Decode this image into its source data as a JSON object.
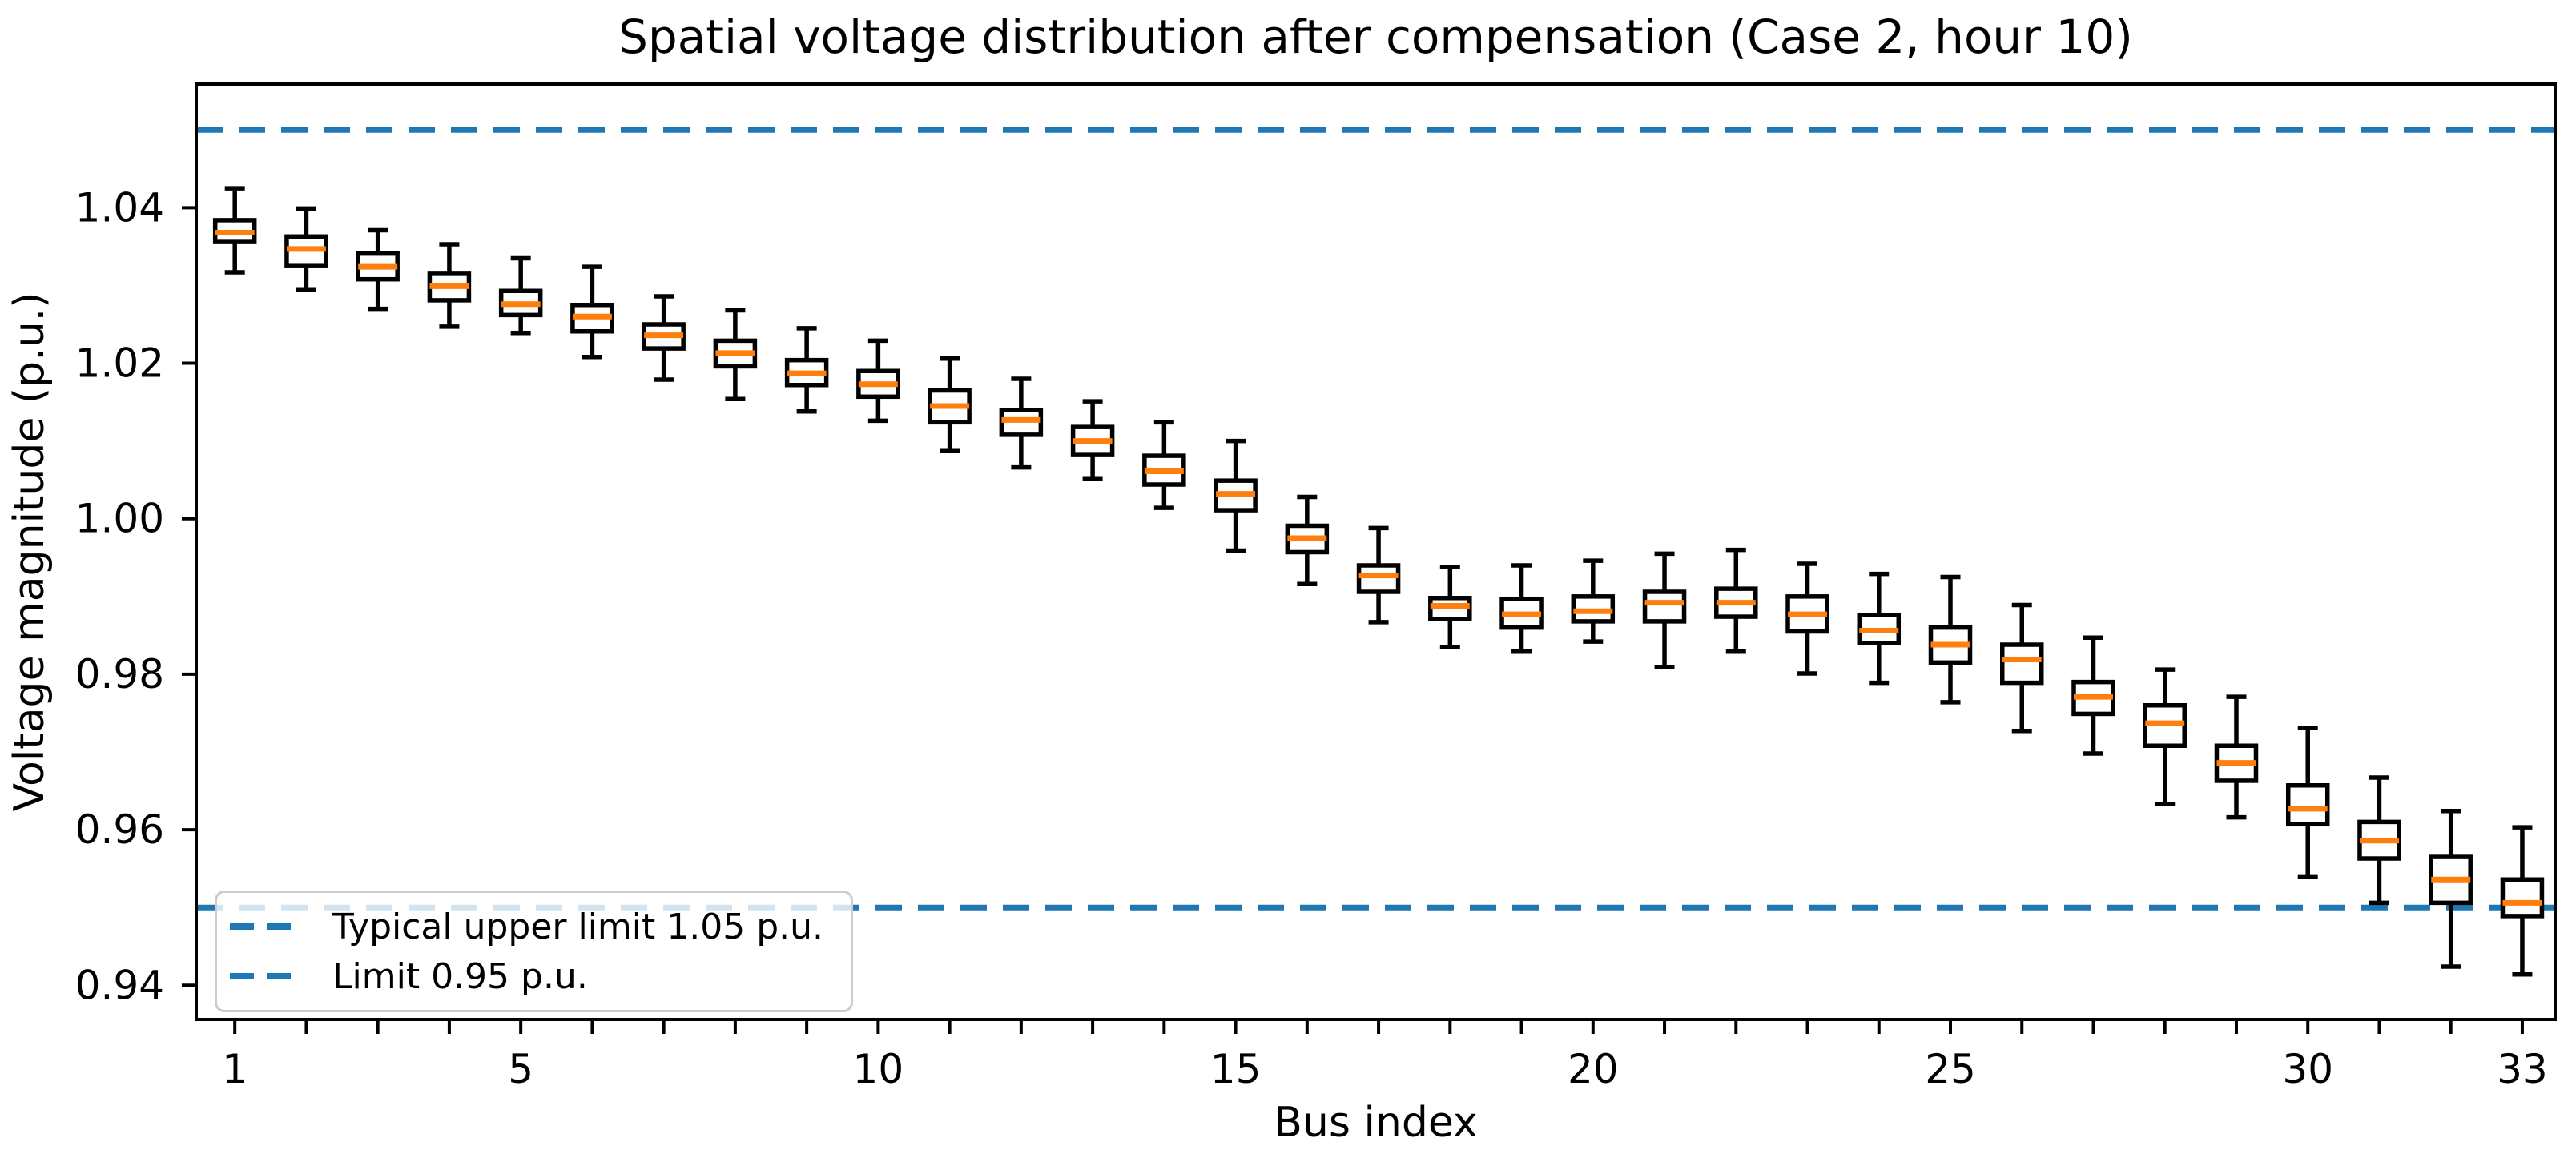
{
  "chart": {
    "title": "Spatial voltage distribution after compensation (Case 2, hour 10)",
    "xlabel": "Bus index",
    "ylabel": "Voltage magnitude (p.u.)"
  },
  "legend": {
    "items": [
      {
        "label": "Typical upper limit 1.05 p.u."
      },
      {
        "label": "Limit 0.95 p.u."
      }
    ]
  },
  "chart_data": {
    "type": "box",
    "title": "Spatial voltage distribution after compensation (Case 2, hour 10)",
    "xlabel": "Bus index",
    "ylabel": "Voltage magnitude (p.u.)",
    "x_tick_labels": [
      "1",
      "5",
      "10",
      "15",
      "20",
      "25",
      "30",
      "33"
    ],
    "x_tick_values": [
      1,
      5,
      10,
      15,
      20,
      25,
      30,
      33
    ],
    "y_tick_labels": [
      "0.94",
      "0.96",
      "0.98",
      "1.00",
      "1.02",
      "1.04"
    ],
    "y_tick_values": [
      0.94,
      0.96,
      0.98,
      1.0,
      1.02,
      1.04
    ],
    "xlim": [
      0.46,
      33.46
    ],
    "ylim": [
      0.9356,
      1.0559
    ],
    "grid": false,
    "legend_position": "lower left",
    "colors": {
      "box": "#000000",
      "median": "#ff7f0e",
      "limit_line": "#1f77b4",
      "legend_border": "#cccccc",
      "background": "#ffffff"
    },
    "limit_lines": [
      {
        "y": 1.05,
        "label": "Typical upper limit 1.05 p.u.",
        "style": "dashed"
      },
      {
        "y": 0.95,
        "label": "Limit 0.95 p.u.",
        "style": "dashed"
      }
    ],
    "boxes": [
      {
        "bus": 1,
        "whislo": 1.0317,
        "q1": 1.0356,
        "med": 1.0368,
        "q3": 1.0384,
        "whishi": 1.0425
      },
      {
        "bus": 2,
        "whislo": 1.0294,
        "q1": 1.0325,
        "med": 1.0347,
        "q3": 1.0363,
        "whishi": 1.0399
      },
      {
        "bus": 3,
        "whislo": 1.027,
        "q1": 1.0308,
        "med": 1.0324,
        "q3": 1.0341,
        "whishi": 1.0371
      },
      {
        "bus": 4,
        "whislo": 1.0247,
        "q1": 1.0281,
        "med": 1.0299,
        "q3": 1.0315,
        "whishi": 1.0353
      },
      {
        "bus": 5,
        "whislo": 1.0239,
        "q1": 1.0262,
        "med": 1.0276,
        "q3": 1.0293,
        "whishi": 1.0335
      },
      {
        "bus": 6,
        "whislo": 1.0208,
        "q1": 1.0241,
        "med": 1.026,
        "q3": 1.0275,
        "whishi": 1.0324
      },
      {
        "bus": 7,
        "whislo": 1.0179,
        "q1": 1.0219,
        "med": 1.0236,
        "q3": 1.025,
        "whishi": 1.0286
      },
      {
        "bus": 8,
        "whislo": 1.0154,
        "q1": 1.0196,
        "med": 1.0213,
        "q3": 1.0229,
        "whishi": 1.0268
      },
      {
        "bus": 9,
        "whislo": 1.0138,
        "q1": 1.0172,
        "med": 1.0187,
        "q3": 1.0204,
        "whishi": 1.0245
      },
      {
        "bus": 10,
        "whislo": 1.0126,
        "q1": 1.0157,
        "med": 1.0173,
        "q3": 1.019,
        "whishi": 1.0229
      },
      {
        "bus": 11,
        "whislo": 1.0087,
        "q1": 1.0124,
        "med": 1.0145,
        "q3": 1.0165,
        "whishi": 1.0206
      },
      {
        "bus": 12,
        "whislo": 1.0066,
        "q1": 1.0108,
        "med": 1.0127,
        "q3": 1.014,
        "whishi": 1.018
      },
      {
        "bus": 13,
        "whislo": 1.0051,
        "q1": 1.0082,
        "med": 1.01,
        "q3": 1.0118,
        "whishi": 1.0151
      },
      {
        "bus": 14,
        "whislo": 1.0014,
        "q1": 1.0044,
        "med": 1.0061,
        "q3": 1.0081,
        "whishi": 1.0124
      },
      {
        "bus": 15,
        "whislo": 0.9959,
        "q1": 1.0011,
        "med": 1.0032,
        "q3": 1.0049,
        "whishi": 1.01
      },
      {
        "bus": 16,
        "whislo": 0.9916,
        "q1": 0.9957,
        "med": 0.9975,
        "q3": 0.9991,
        "whishi": 1.0028
      },
      {
        "bus": 17,
        "whislo": 0.9867,
        "q1": 0.9906,
        "med": 0.9927,
        "q3": 0.994,
        "whishi": 0.9988
      },
      {
        "bus": 18,
        "whislo": 0.9835,
        "q1": 0.9871,
        "med": 0.9888,
        "q3": 0.9898,
        "whishi": 0.9938
      },
      {
        "bus": 19,
        "whislo": 0.9829,
        "q1": 0.986,
        "med": 0.9877,
        "q3": 0.9897,
        "whishi": 0.994
      },
      {
        "bus": 20,
        "whislo": 0.9842,
        "q1": 0.9868,
        "med": 0.9881,
        "q3": 0.99,
        "whishi": 0.9946
      },
      {
        "bus": 21,
        "whislo": 0.9809,
        "q1": 0.9868,
        "med": 0.9892,
        "q3": 0.9906,
        "whishi": 0.9955
      },
      {
        "bus": 22,
        "whislo": 0.9829,
        "q1": 0.9874,
        "med": 0.9892,
        "q3": 0.991,
        "whishi": 0.996
      },
      {
        "bus": 23,
        "whislo": 0.9801,
        "q1": 0.9855,
        "med": 0.9877,
        "q3": 0.99,
        "whishi": 0.9942
      },
      {
        "bus": 24,
        "whislo": 0.9789,
        "q1": 0.984,
        "med": 0.9856,
        "q3": 0.9876,
        "whishi": 0.9929
      },
      {
        "bus": 25,
        "whislo": 0.9764,
        "q1": 0.9815,
        "med": 0.9838,
        "q3": 0.986,
        "whishi": 0.9925
      },
      {
        "bus": 26,
        "whislo": 0.9727,
        "q1": 0.9789,
        "med": 0.9819,
        "q3": 0.9838,
        "whishi": 0.9889
      },
      {
        "bus": 27,
        "whislo": 0.9698,
        "q1": 0.9749,
        "med": 0.9771,
        "q3": 0.979,
        "whishi": 0.9847
      },
      {
        "bus": 28,
        "whislo": 0.9633,
        "q1": 0.9708,
        "med": 0.9737,
        "q3": 0.976,
        "whishi": 0.9806
      },
      {
        "bus": 29,
        "whislo": 0.9616,
        "q1": 0.9663,
        "med": 0.9686,
        "q3": 0.9708,
        "whishi": 0.9771
      },
      {
        "bus": 30,
        "whislo": 0.954,
        "q1": 0.9607,
        "med": 0.9627,
        "q3": 0.9657,
        "whishi": 0.9731
      },
      {
        "bus": 31,
        "whislo": 0.9506,
        "q1": 0.9563,
        "med": 0.9586,
        "q3": 0.961,
        "whishi": 0.9667
      },
      {
        "bus": 32,
        "whislo": 0.9424,
        "q1": 0.9506,
        "med": 0.9536,
        "q3": 0.9565,
        "whishi": 0.9624
      },
      {
        "bus": 33,
        "whislo": 0.9414,
        "q1": 0.9489,
        "med": 0.9506,
        "q3": 0.9536,
        "whishi": 0.9603
      }
    ]
  }
}
